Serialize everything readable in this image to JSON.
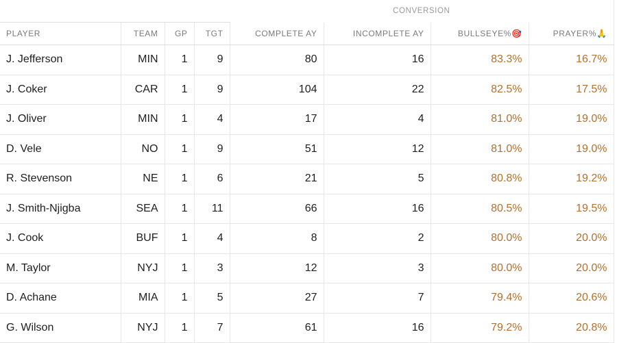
{
  "table": {
    "group_header": "CONVERSION",
    "columns": [
      "PLAYER",
      "TEAM",
      "GP",
      "TGT",
      "COMPLETE AY",
      "INCOMPLETE AY",
      "BULLSEYE%🎯",
      "PRAYER%🙏"
    ],
    "rows": [
      [
        "J. Jefferson",
        "MIN",
        "1",
        "9",
        "80",
        "16",
        "83.3%",
        "16.7%"
      ],
      [
        "J. Coker",
        "CAR",
        "1",
        "9",
        "104",
        "22",
        "82.5%",
        "17.5%"
      ],
      [
        "J. Oliver",
        "MIN",
        "1",
        "4",
        "17",
        "4",
        "81.0%",
        "19.0%"
      ],
      [
        "D. Vele",
        "NO",
        "1",
        "9",
        "51",
        "12",
        "81.0%",
        "19.0%"
      ],
      [
        "R. Stevenson",
        "NE",
        "1",
        "6",
        "21",
        "5",
        "80.8%",
        "19.2%"
      ],
      [
        "J. Smith-Njigba",
        "SEA",
        "1",
        "11",
        "66",
        "16",
        "80.5%",
        "19.5%"
      ],
      [
        "J. Cook",
        "BUF",
        "1",
        "4",
        "8",
        "2",
        "80.0%",
        "20.0%"
      ],
      [
        "M. Taylor",
        "NYJ",
        "1",
        "3",
        "12",
        "3",
        "80.0%",
        "20.0%"
      ],
      [
        "D. Achane",
        "MIA",
        "1",
        "5",
        "27",
        "7",
        "79.4%",
        "20.6%"
      ],
      [
        "G. Wilson",
        "NYJ",
        "1",
        "7",
        "61",
        "16",
        "79.2%",
        "20.8%"
      ]
    ]
  }
}
